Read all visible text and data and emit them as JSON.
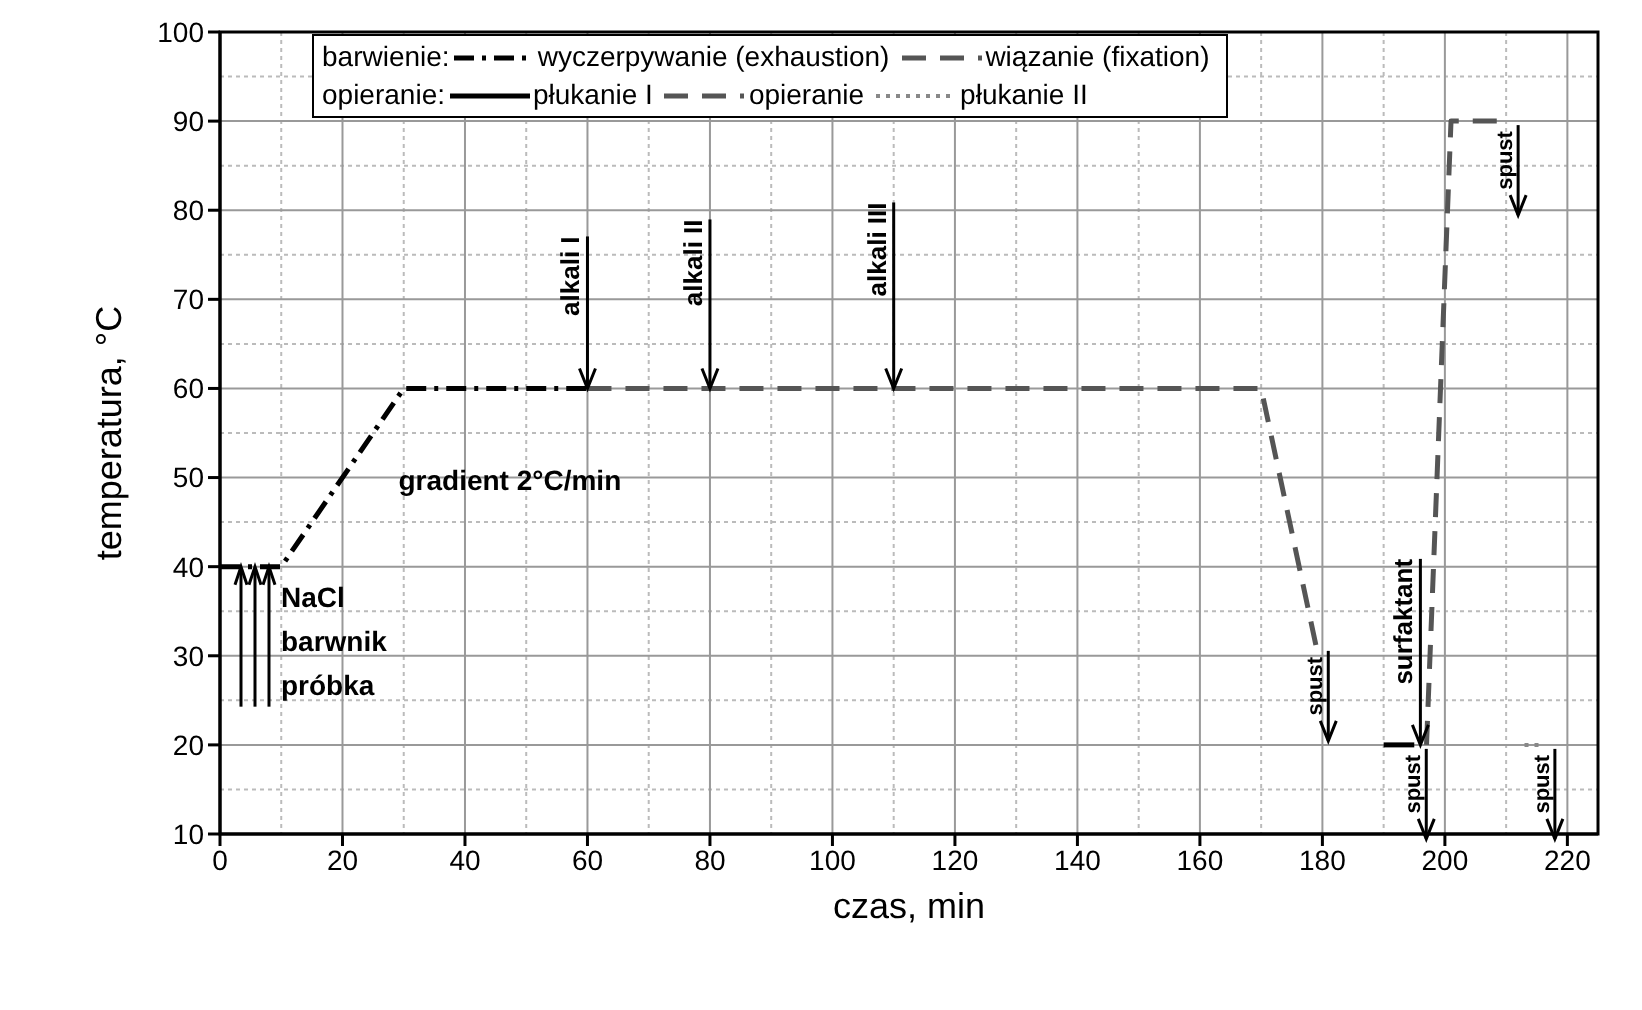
{
  "chart_data": {
    "type": "line",
    "xlabel": "czas, min",
    "ylabel": "temperatura, °C",
    "xlim": [
      0,
      225
    ],
    "xticks": [
      0,
      20,
      40,
      60,
      80,
      100,
      120,
      140,
      160,
      180,
      200,
      220
    ],
    "ylim": [
      10,
      100
    ],
    "yticks": [
      10,
      20,
      30,
      40,
      50,
      60,
      70,
      80,
      90,
      100
    ],
    "grid": true,
    "legend": "top",
    "marker": "none",
    "series": [
      {
        "name": "wyczerpywanie (exhaustion)",
        "color": "#000000",
        "line_style": "dashdot",
        "x": [
          0,
          10,
          30,
          60
        ],
        "values": [
          40,
          40,
          60,
          60
        ]
      },
      {
        "name": "wiązanie (fixation)",
        "color": "#555555",
        "line_style": "dashed",
        "x": [
          60,
          170,
          179
        ],
        "values": [
          60,
          60,
          31
        ]
      },
      {
        "name": "płukanie I",
        "color": "#000000",
        "line_style": "solid",
        "x": [
          190,
          195
        ],
        "values": [
          20,
          20
        ]
      },
      {
        "name": "opieranie",
        "color": "#555555",
        "line_style": "dashed",
        "x": [
          197,
          201,
          210
        ],
        "values": [
          20,
          90,
          90
        ]
      },
      {
        "name": "płukanie II",
        "color": "#888888",
        "line_style": "dotted",
        "x": [
          213,
          216
        ],
        "values": [
          20,
          20
        ]
      }
    ],
    "annotations": [
      "barwienie:",
      "opieranie:",
      {
        "text": "alkali I",
        "x": 60,
        "y": 60
      },
      {
        "text": "alkali II",
        "x": 80,
        "y": 60
      },
      {
        "text": "alkali III",
        "x": 110,
        "y": 60
      },
      {
        "text": "gradient 2°C/min",
        "x": 20,
        "y": 50
      },
      {
        "text": "NaCl\nbarwnik\npróbka",
        "x": 8,
        "y": 40
      },
      {
        "text": "spust",
        "x": 179,
        "y": 31
      },
      {
        "text": "surfaktant",
        "x": 196,
        "y": 20
      },
      {
        "text": "spust",
        "x": 195,
        "y": 20
      },
      {
        "text": "spust",
        "x": 210,
        "y": 90
      },
      {
        "text": "spust",
        "x": 216,
        "y": 20
      }
    ]
  }
}
